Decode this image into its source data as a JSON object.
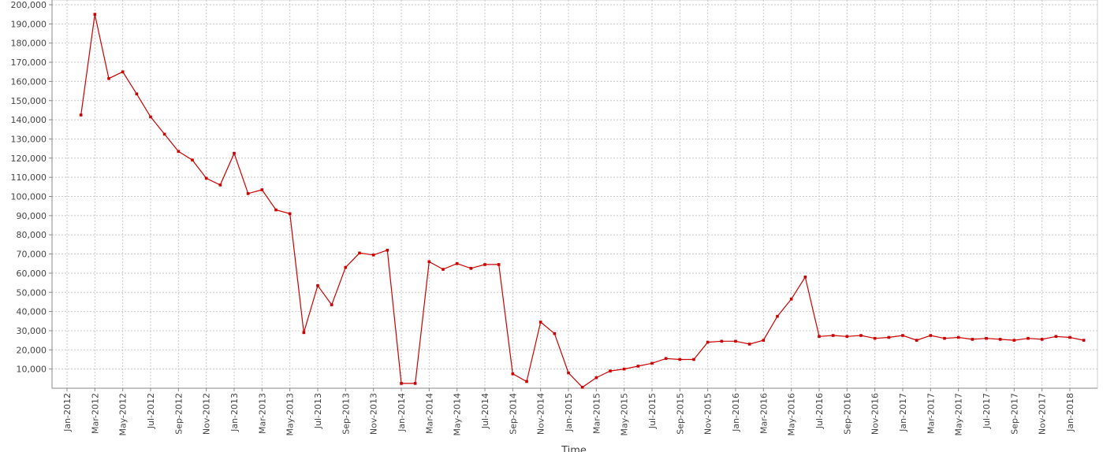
{
  "chart_data": {
    "type": "line",
    "x_label": "Time",
    "x": [
      "Feb-2012",
      "Mar-2012",
      "Apr-2012",
      "May-2012",
      "Jun-2012",
      "Jul-2012",
      "Aug-2012",
      "Sep-2012",
      "Oct-2012",
      "Nov-2012",
      "Dec-2012",
      "Jan-2013",
      "Feb-2013",
      "Mar-2013",
      "Apr-2013",
      "May-2013",
      "Jun-2013",
      "Jul-2013",
      "Aug-2013",
      "Sep-2013",
      "Oct-2013",
      "Nov-2013",
      "Dec-2013",
      "Jan-2014",
      "Feb-2014",
      "Mar-2014",
      "Apr-2014",
      "May-2014",
      "Jun-2014",
      "Jul-2014",
      "Aug-2014",
      "Sep-2014",
      "Oct-2014",
      "Nov-2014",
      "Dec-2014",
      "Jan-2015",
      "Feb-2015",
      "Mar-2015",
      "Apr-2015",
      "May-2015",
      "Jun-2015",
      "Jul-2015",
      "Aug-2015",
      "Sep-2015",
      "Oct-2015",
      "Nov-2015",
      "Dec-2015",
      "Jan-2016",
      "Feb-2016",
      "Mar-2016",
      "Apr-2016",
      "May-2016",
      "Jun-2016",
      "Jul-2016",
      "Aug-2016",
      "Sep-2016",
      "Oct-2016",
      "Nov-2016",
      "Dec-2016",
      "Jan-2017",
      "Feb-2017",
      "Mar-2017",
      "Apr-2017",
      "May-2017",
      "Jun-2017",
      "Jul-2017",
      "Aug-2017",
      "Sep-2017",
      "Oct-2017",
      "Nov-2017",
      "Dec-2017",
      "Jan-2018",
      "Feb-2018"
    ],
    "series": [
      {
        "color": "#cc0000",
        "values": [
          142500,
          195000,
          161500,
          165000,
          153500,
          141500,
          132500,
          123500,
          119000,
          109500,
          106000,
          122500,
          101500,
          103500,
          93000,
          91000,
          29000,
          53500,
          43500,
          63000,
          70500,
          69500,
          72000,
          2500,
          2500,
          66000,
          62000,
          65000,
          62500,
          64500,
          64500,
          7500,
          3500,
          34500,
          28500,
          8000,
          500,
          5500,
          9000,
          10000,
          11500,
          13000,
          15500,
          15000,
          15000,
          24000,
          24500,
          24500,
          23000,
          25000,
          37500,
          46500,
          58000,
          27000,
          27500,
          27000,
          27500,
          26000,
          26500,
          27500,
          25000,
          27500,
          26000,
          26500,
          25500,
          26000,
          25500,
          25000,
          26000,
          25500,
          27000,
          26500,
          25000
        ]
      }
    ],
    "xticks": [
      "Jan-2012",
      "Mar-2012",
      "May-2012",
      "Jul-2012",
      "Sep-2012",
      "Nov-2012",
      "Jan-2013",
      "Mar-2013",
      "May-2013",
      "Jul-2013",
      "Sep-2013",
      "Nov-2013",
      "Jan-2014",
      "Mar-2014",
      "May-2014",
      "Jul-2014",
      "Sep-2014",
      "Nov-2014",
      "Jan-2015",
      "Mar-2015",
      "May-2015",
      "Jul-2015",
      "Sep-2015",
      "Nov-2015",
      "Jan-2016",
      "Mar-2016",
      "May-2016",
      "Jul-2016",
      "Sep-2016",
      "Nov-2016",
      "Jan-2017",
      "Mar-2017",
      "May-2017",
      "Jul-2017",
      "Sep-2017",
      "Nov-2017",
      "Jan-2018"
    ],
    "ylim": [
      0,
      200000
    ],
    "yticks": [
      {
        "value": 10000,
        "label": "10,000"
      },
      {
        "value": 20000,
        "label": "20,000"
      },
      {
        "value": 30000,
        "label": "30,000"
      },
      {
        "value": 40000,
        "label": "40,000"
      },
      {
        "value": 50000,
        "label": "50,000"
      },
      {
        "value": 60000,
        "label": "60,000"
      },
      {
        "value": 70000,
        "label": "70,000"
      },
      {
        "value": 80000,
        "label": "80,000"
      },
      {
        "value": 90000,
        "label": "90,000"
      },
      {
        "value": 100000,
        "label": "100,000"
      },
      {
        "value": 110000,
        "label": "110,000"
      },
      {
        "value": 120000,
        "label": "120,000"
      },
      {
        "value": 130000,
        "label": "130,000"
      },
      {
        "value": 140000,
        "label": "140,000"
      },
      {
        "value": 150000,
        "label": "150,000"
      },
      {
        "value": 160000,
        "label": "160,000"
      },
      {
        "value": 170000,
        "label": "170,000"
      },
      {
        "value": 180000,
        "label": "180,000"
      },
      {
        "value": 190000,
        "label": "190,000"
      },
      {
        "value": 200000,
        "label": "200,000"
      }
    ],
    "grid": true
  }
}
